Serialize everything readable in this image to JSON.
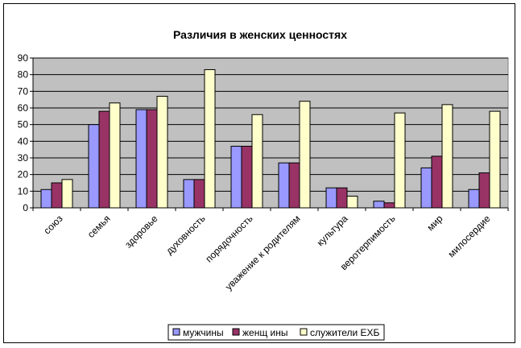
{
  "chart_data": {
    "type": "bar",
    "title": "Различия в женских ценностях",
    "xlabel": "",
    "ylabel": "",
    "ylim": [
      0,
      90
    ],
    "yticks": [
      0,
      10,
      20,
      30,
      40,
      50,
      60,
      70,
      80,
      90
    ],
    "grid": true,
    "legend_position": "bottom",
    "categories": [
      "союз",
      "семья",
      "здоровье",
      "духовность",
      "порядочность",
      "уважение к родителям",
      "культура",
      "веротерпимость",
      "мир",
      "милосердие"
    ],
    "series": [
      {
        "name": "мужчины",
        "color": "#9999ff",
        "values": [
          11,
          50,
          59,
          17,
          37,
          27,
          12,
          4,
          24,
          11
        ]
      },
      {
        "name": "женщ ины",
        "color": "#993366",
        "values": [
          15,
          58,
          59,
          17,
          37,
          27,
          12,
          3,
          31,
          21
        ]
      },
      {
        "name": "служители ЕХБ",
        "color": "#ffffcc",
        "values": [
          17,
          63,
          67,
          83,
          56,
          64,
          7,
          57,
          62,
          58
        ]
      }
    ],
    "plot_background": "#c0c0c0"
  }
}
